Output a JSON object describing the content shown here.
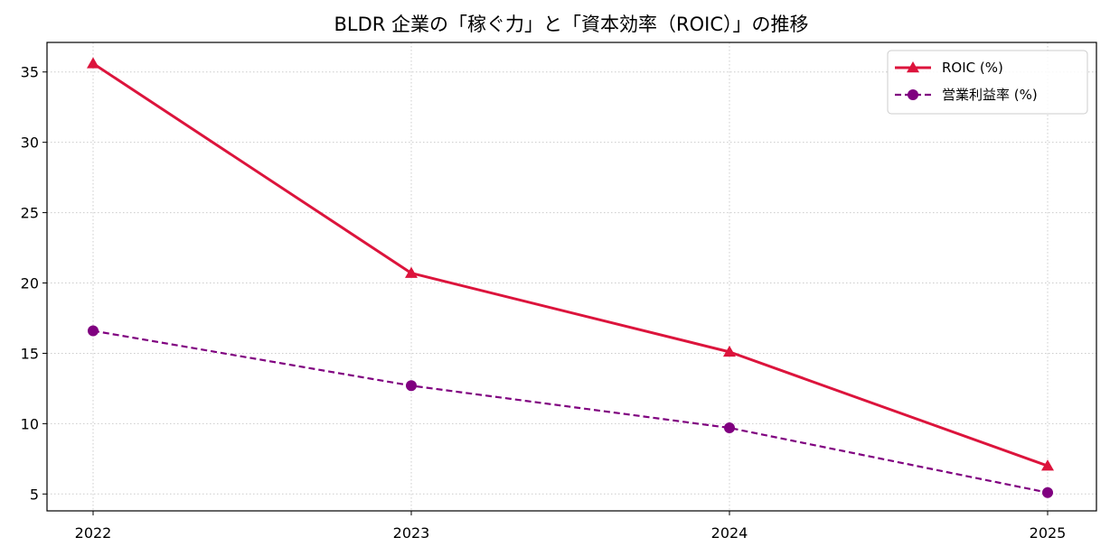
{
  "chart_data": {
    "type": "line",
    "title": "BLDR 企業の「稼ぐ力」と「資本効率（ROIC）」の推移",
    "xlabel": "",
    "ylabel": "",
    "categories": [
      "2022",
      "2023",
      "2024",
      "2025"
    ],
    "y_ticks": [
      5,
      10,
      15,
      20,
      25,
      30,
      35
    ],
    "ylim": [
      3.8,
      37.1
    ],
    "grid": true,
    "legend_position": "top-right",
    "series": [
      {
        "name": "ROIC (%)",
        "values": [
          35.6,
          20.7,
          15.1,
          7.0
        ],
        "color": "#dc143c",
        "marker": "triangle",
        "line_style": "solid"
      },
      {
        "name": "営業利益率 (%)",
        "values": [
          16.6,
          12.7,
          9.7,
          5.1
        ],
        "color": "#800080",
        "marker": "circle",
        "line_style": "dashed"
      }
    ]
  }
}
